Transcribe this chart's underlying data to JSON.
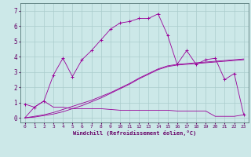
{
  "xlabel": "Windchill (Refroidissement éolien,°C)",
  "ylabel": "",
  "background_color": "#cce8e8",
  "line_color": "#990099",
  "grid_color": "#aacccc",
  "x_ticks": [
    0,
    1,
    2,
    3,
    4,
    5,
    6,
    7,
    8,
    9,
    10,
    11,
    12,
    13,
    14,
    15,
    16,
    17,
    18,
    19,
    20,
    21,
    22,
    23
  ],
  "y_ticks": [
    0,
    1,
    2,
    3,
    4,
    5,
    6,
    7
  ],
  "ylim": [
    -0.3,
    7.5
  ],
  "xlim": [
    -0.5,
    23.5
  ],
  "series1_x": [
    0,
    1,
    2,
    3,
    4,
    5,
    6,
    7,
    8,
    9,
    10,
    11,
    12,
    13,
    14,
    15,
    16,
    17,
    18,
    19,
    20,
    21,
    22,
    23
  ],
  "series1_y": [
    0.9,
    0.7,
    1.1,
    2.8,
    3.9,
    2.7,
    3.8,
    4.4,
    5.1,
    5.8,
    6.2,
    6.3,
    6.5,
    6.5,
    6.8,
    5.4,
    3.5,
    4.4,
    3.5,
    3.8,
    3.9,
    2.5,
    2.9,
    0.2
  ],
  "series2_x": [
    0,
    1,
    2,
    3,
    4,
    5,
    6,
    7,
    8,
    9,
    10,
    11,
    12,
    13,
    14,
    15,
    16,
    17,
    18,
    19,
    20,
    21,
    22,
    23
  ],
  "series2_y": [
    0.0,
    0.7,
    1.1,
    0.7,
    0.7,
    0.6,
    0.6,
    0.6,
    0.6,
    0.55,
    0.5,
    0.5,
    0.5,
    0.5,
    0.5,
    0.5,
    0.45,
    0.45,
    0.45,
    0.45,
    0.1,
    0.1,
    0.1,
    0.2
  ],
  "series3_x": [
    0,
    1,
    2,
    3,
    4,
    5,
    6,
    7,
    8,
    9,
    10,
    11,
    12,
    13,
    14,
    15,
    16,
    17,
    18,
    19,
    20,
    21,
    22,
    23
  ],
  "series3_y": [
    0.0,
    0.1,
    0.2,
    0.35,
    0.55,
    0.75,
    0.95,
    1.15,
    1.4,
    1.65,
    1.95,
    2.25,
    2.6,
    2.9,
    3.2,
    3.4,
    3.5,
    3.55,
    3.6,
    3.65,
    3.7,
    3.75,
    3.8,
    3.85
  ],
  "series4_x": [
    0,
    1,
    2,
    3,
    4,
    5,
    6,
    7,
    8,
    9,
    10,
    11,
    12,
    13,
    14,
    15,
    16,
    17,
    18,
    19,
    20,
    21,
    22,
    23
  ],
  "series4_y": [
    0.0,
    0.05,
    0.15,
    0.25,
    0.4,
    0.6,
    0.8,
    1.05,
    1.3,
    1.6,
    1.9,
    2.2,
    2.55,
    2.85,
    3.15,
    3.35,
    3.45,
    3.5,
    3.55,
    3.6,
    3.65,
    3.7,
    3.75,
    3.8
  ],
  "xlabel_color": "#660066",
  "tick_color": "#660066"
}
